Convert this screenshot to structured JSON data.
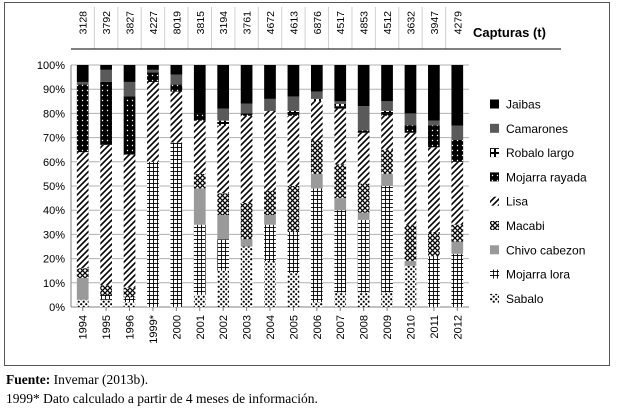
{
  "footer": {
    "source_label": "Fuente:",
    "source_text": "Invemar (2013b).",
    "note": "1999* Dato calculado a partir de 4 meses de información."
  },
  "chart_data": {
    "type": "bar",
    "stacked": true,
    "normalized": true,
    "header_title": "Capturas (t)",
    "categories": [
      "1994",
      "1995",
      "1996",
      "1999*",
      "2000",
      "2001",
      "2002",
      "2003",
      "2004",
      "2005",
      "2006",
      "2007",
      "2008",
      "2009",
      "2010",
      "2011",
      "2012"
    ],
    "totals": [
      3128,
      3792,
      3827,
      4227,
      8019,
      3815,
      3194,
      3761,
      4672,
      4613,
      6876,
      4517,
      4853,
      4512,
      3632,
      3947,
      4279
    ],
    "ylim": [
      0,
      100
    ],
    "yticks": [
      "0%",
      "10%",
      "20%",
      "30%",
      "40%",
      "50%",
      "60%",
      "70%",
      "80%",
      "90%",
      "100%"
    ],
    "legend_position": "right",
    "series": [
      {
        "name": "Sabalo",
        "pattern": "sabalo",
        "values": [
          3,
          3,
          2,
          0,
          0,
          5,
          15,
          25,
          19,
          14,
          2,
          6,
          6,
          6,
          17,
          0,
          0
        ]
      },
      {
        "name": "Mojarra lora",
        "pattern": "mojarra-lora",
        "values": [
          0,
          2,
          2,
          60,
          68,
          29,
          13,
          0,
          15,
          17,
          47,
          34,
          30,
          44,
          0,
          21,
          22
        ]
      },
      {
        "name": "Chivo cabezon",
        "pattern": "chivo",
        "values": [
          9,
          0,
          0,
          0,
          0,
          15,
          10,
          3,
          4,
          0,
          6,
          5,
          3,
          5,
          2,
          0,
          5
        ]
      },
      {
        "name": "Macabi",
        "pattern": "macabi",
        "values": [
          4,
          4,
          4,
          0,
          0,
          6,
          9,
          15,
          10,
          19,
          14,
          14,
          12,
          10,
          15,
          10,
          7
        ]
      },
      {
        "name": "Lisa",
        "pattern": "lisa",
        "values": [
          48,
          58,
          55,
          33,
          21,
          22,
          28,
          36,
          33,
          29,
          16,
          23,
          21,
          14,
          38,
          35,
          26
        ]
      },
      {
        "name": "Mojarra rayada",
        "pattern": "mojarra-rayada",
        "values": [
          28,
          26,
          24,
          4,
          3,
          3,
          0,
          1,
          0,
          1,
          0,
          1,
          1,
          1,
          3,
          9,
          9
        ]
      },
      {
        "name": "Robalo largo",
        "pattern": "robalo",
        "values": [
          0,
          0,
          0,
          0,
          0,
          0,
          2,
          0,
          0,
          1,
          1,
          1,
          0,
          1,
          0,
          0,
          0
        ]
      },
      {
        "name": "Camarones",
        "pattern": "camarones",
        "values": [
          1,
          5,
          6,
          1,
          4,
          0,
          5,
          4,
          5,
          6,
          3,
          1,
          10,
          4,
          5,
          2,
          6
        ]
      },
      {
        "name": "Jaibas",
        "pattern": "jaibas",
        "values": [
          7,
          2,
          7,
          2,
          4,
          20,
          18,
          16,
          14,
          13,
          11,
          15,
          17,
          15,
          20,
          23,
          25
        ]
      }
    ]
  }
}
